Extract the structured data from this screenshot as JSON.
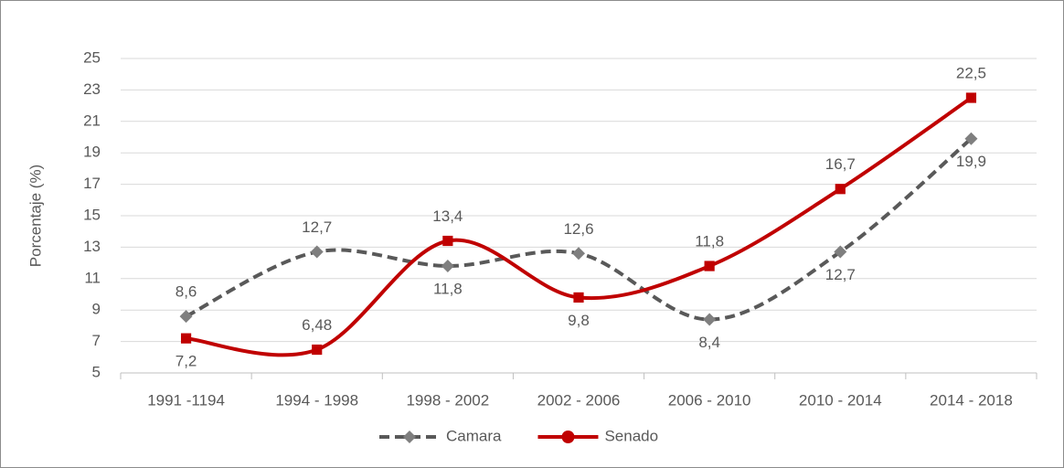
{
  "chart_data": {
    "type": "line",
    "y_label": "Porcentaje (%)",
    "categories": [
      "1991 -1194",
      "1994 - 1998",
      "1998 - 2002",
      "2002 - 2006",
      "2006 - 2010",
      "2010 - 2014",
      "2014 - 2018"
    ],
    "series": [
      {
        "name": "Camara",
        "color": "#595959",
        "linestyle": "dashed",
        "marker": "diamond",
        "marker_color": "#7f7f7f",
        "values": [
          8.6,
          12.7,
          11.8,
          12.6,
          8.4,
          12.7,
          19.9
        ],
        "value_labels": [
          "8,6",
          "12,7",
          "11,8",
          "12,6",
          "8,4",
          "12,7",
          "19,9"
        ]
      },
      {
        "name": "Senado",
        "color": "#c00000",
        "linestyle": "solid",
        "marker": "square",
        "marker_color": "#c00000",
        "values": [
          7.2,
          6.48,
          13.4,
          9.8,
          11.8,
          16.7,
          22.5
        ],
        "value_labels": [
          "7,2",
          "6,48",
          "13,4",
          "9,8",
          "11,8",
          "16,7",
          "22,5"
        ]
      }
    ],
    "ylim": [
      5,
      25
    ],
    "yticks": [
      5,
      7,
      9,
      11,
      13,
      15,
      17,
      19,
      21,
      23,
      25
    ],
    "grid": true,
    "smooth": true,
    "legend": "bottom"
  }
}
